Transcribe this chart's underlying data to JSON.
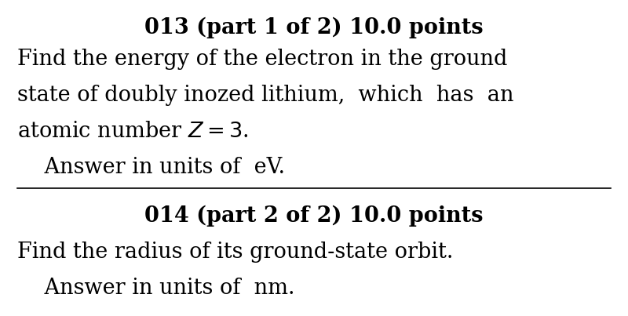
{
  "bg_color": "#ffffff",
  "line_color": "#000000",
  "title1": "013 (part 1 of 2) 10.0 points",
  "body1_line1": "Find the energy of the electron in the ground",
  "body1_line2": "state of doubly inozed lithium,  which  has  an",
  "body1_line3": "atomic number $Z = 3$.",
  "body1_line4": "    Answer in units of  eV.",
  "title2": "014 (part 2 of 2) 10.0 points",
  "body2_line1": "Find the radius of its ground-state orbit.",
  "body2_line2": "    Answer in units of  nm.",
  "title_fontsize": 19.5,
  "body_fontsize": 19.5,
  "fig_width": 8.0,
  "fig_height": 4.03,
  "dpi": 100
}
